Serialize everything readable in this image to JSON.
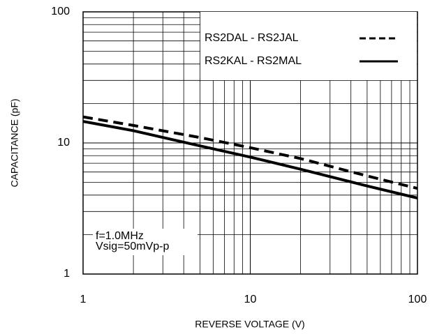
{
  "chart_data": {
    "type": "line",
    "xlabel": "REVERSE VOLTAGE (V)",
    "ylabel": "CAPACITANCE (pF)",
    "x": [
      1,
      2,
      5,
      10,
      20,
      50,
      100
    ],
    "series": [
      {
        "name": "RS2DAL - RS2JAL",
        "color": "#000000",
        "style": "dashed",
        "values": [
          15.8,
          13.6,
          11.0,
          9.2,
          7.6,
          5.6,
          4.5
        ]
      },
      {
        "name": "RS2KAL - RS2MAL",
        "color": "#000000",
        "style": "solid",
        "values": [
          14.6,
          12.4,
          9.5,
          7.8,
          6.3,
          4.7,
          3.8
        ]
      }
    ],
    "xlim": [
      1,
      100
    ],
    "ylim": [
      1,
      100
    ],
    "xticks": [
      1,
      10,
      100
    ],
    "yticks": [
      1,
      10,
      100
    ],
    "xscale": "log",
    "yscale": "log",
    "grid": true,
    "minor_grid": true,
    "legend": "upper right",
    "annotations": [
      "f=1.0MHz",
      "Vsig=50mVp-p"
    ]
  }
}
